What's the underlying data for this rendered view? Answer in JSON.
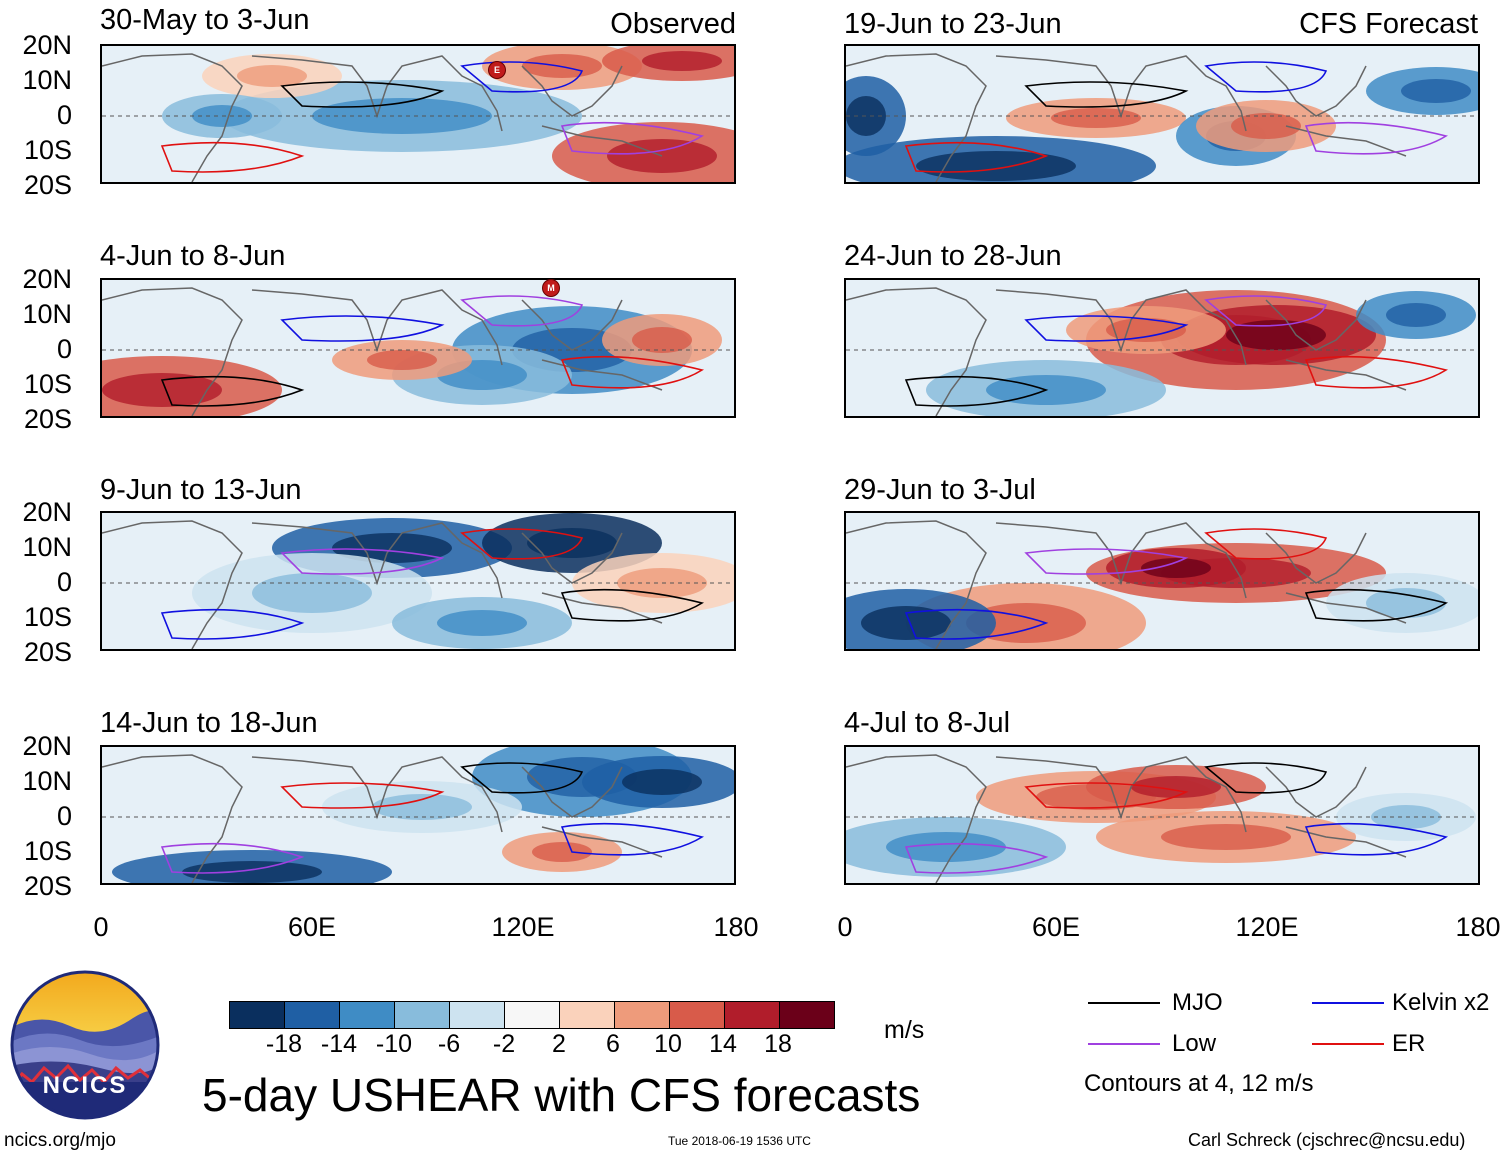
{
  "left_header": "Observed",
  "right_header": "CFS Forecast",
  "y_ticks": [
    "20N",
    "10N",
    "0",
    "10S",
    "20S"
  ],
  "x_ticks": [
    "0",
    "60E",
    "120E",
    "180"
  ],
  "panels": [
    {
      "title": "30-May to 3-Jun",
      "storms": [
        "E"
      ]
    },
    {
      "title": "4-Jun to 8-Jun",
      "storms": [
        "M"
      ]
    },
    {
      "title": "9-Jun to 13-Jun"
    },
    {
      "title": "14-Jun to 18-Jun"
    },
    {
      "title": "19-Jun to 23-Jun"
    },
    {
      "title": "24-Jun to 28-Jun"
    },
    {
      "title": "29-Jun to 3-Jul"
    },
    {
      "title": "4-Jul to 8-Jul"
    }
  ],
  "colorbar": {
    "labels": [
      "-18",
      "-14",
      "-10",
      "-6",
      "-2",
      "2",
      "6",
      "10",
      "14",
      "18"
    ],
    "colors": [
      "#0a2f5e",
      "#1f5fa4",
      "#3f8cc5",
      "#88bcdc",
      "#cde3f0",
      "#f7f7f7",
      "#fad2bb",
      "#ee9b7b",
      "#d85b4a",
      "#b11d2b",
      "#6b0019"
    ],
    "unit": "m/s"
  },
  "legend": {
    "items": [
      {
        "label": "MJO",
        "color": "#000000"
      },
      {
        "label": "Kelvin x2",
        "color": "#1010e0"
      },
      {
        "label": "Low",
        "color": "#a040e0"
      },
      {
        "label": "ER",
        "color": "#e01010"
      }
    ],
    "note": "Contours at 4, 12 m/s"
  },
  "main_title": "5-day USHEAR with CFS forecasts",
  "logo_text": "NCICS",
  "footer": {
    "left": "ncics.org/mjo",
    "center": "Tue 2018-06-19 1536 UTC",
    "right": "Carl Schreck (cjschrec@ncsu.edu)"
  }
}
